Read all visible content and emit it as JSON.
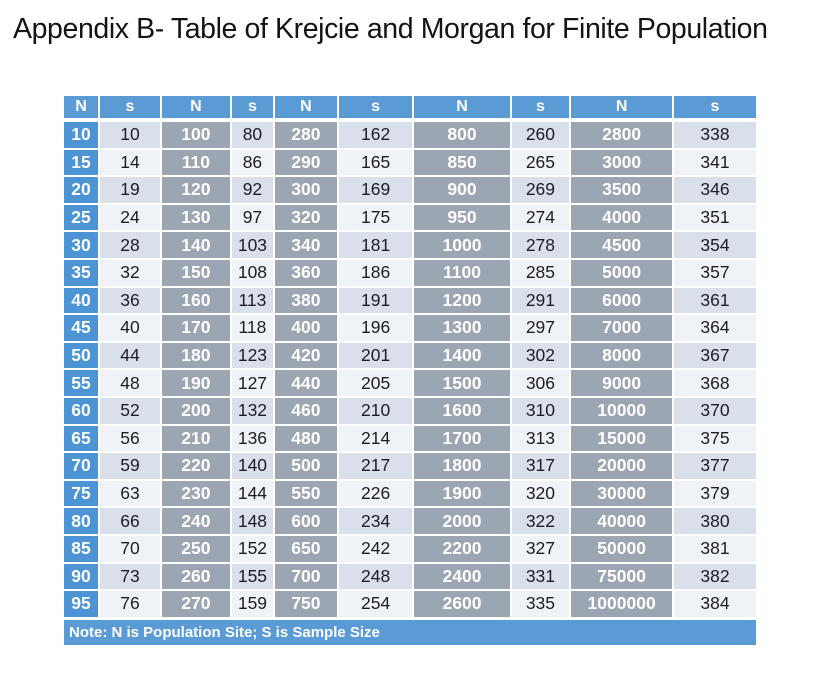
{
  "page": {
    "title": "Appendix B- Table of Krejcie and Morgan for Finite Population"
  },
  "table": {
    "header": [
      "N",
      "s",
      "N",
      "s",
      "N",
      "s",
      "N",
      "s",
      "N",
      "s"
    ],
    "rows": [
      [
        "10",
        "10",
        "100",
        "80",
        "280",
        "162",
        "800",
        "260",
        "2800",
        "338"
      ],
      [
        "15",
        "14",
        "110",
        "86",
        "290",
        "165",
        "850",
        "265",
        "3000",
        "341"
      ],
      [
        "20",
        "19",
        "120",
        "92",
        "300",
        "169",
        "900",
        "269",
        "3500",
        "346"
      ],
      [
        "25",
        "24",
        "130",
        "97",
        "320",
        "175",
        "950",
        "274",
        "4000",
        "351"
      ],
      [
        "30",
        "28",
        "140",
        "103",
        "340",
        "181",
        "1000",
        "278",
        "4500",
        "354"
      ],
      [
        "35",
        "32",
        "150",
        "108",
        "360",
        "186",
        "1100",
        "285",
        "5000",
        "357"
      ],
      [
        "40",
        "36",
        "160",
        "113",
        "380",
        "191",
        "1200",
        "291",
        "6000",
        "361"
      ],
      [
        "45",
        "40",
        "170",
        "118",
        "400",
        "196",
        "1300",
        "297",
        "7000",
        "364"
      ],
      [
        "50",
        "44",
        "180",
        "123",
        "420",
        "201",
        "1400",
        "302",
        "8000",
        "367"
      ],
      [
        "55",
        "48",
        "190",
        "127",
        "440",
        "205",
        "1500",
        "306",
        "9000",
        "368"
      ],
      [
        "60",
        "52",
        "200",
        "132",
        "460",
        "210",
        "1600",
        "310",
        "10000",
        "370"
      ],
      [
        "65",
        "56",
        "210",
        "136",
        "480",
        "214",
        "1700",
        "313",
        "15000",
        "375"
      ],
      [
        "70",
        "59",
        "220",
        "140",
        "500",
        "217",
        "1800",
        "317",
        "20000",
        "377"
      ],
      [
        "75",
        "63",
        "230",
        "144",
        "550",
        "226",
        "1900",
        "320",
        "30000",
        "379"
      ],
      [
        "80",
        "66",
        "240",
        "148",
        "600",
        "234",
        "2000",
        "322",
        "40000",
        "380"
      ],
      [
        "85",
        "70",
        "250",
        "152",
        "650",
        "242",
        "2200",
        "327",
        "50000",
        "381"
      ],
      [
        "90",
        "73",
        "260",
        "155",
        "700",
        "248",
        "2400",
        "331",
        "75000",
        "382"
      ],
      [
        "95",
        "76",
        "270",
        "159",
        "750",
        "254",
        "2600",
        "335",
        "1000000",
        "384"
      ]
    ],
    "note": "Note: N is Population Site; S is Sample Size"
  },
  "colors": {
    "header_blue": "#5B9BD5",
    "first_column_blue": "#4D94D5",
    "population_gray": "#9CA5B2",
    "sample_cell_shaded": "#D9E0EC",
    "sample_cell_light": "#EFF2F7",
    "text_dark": "#1C1C26"
  }
}
